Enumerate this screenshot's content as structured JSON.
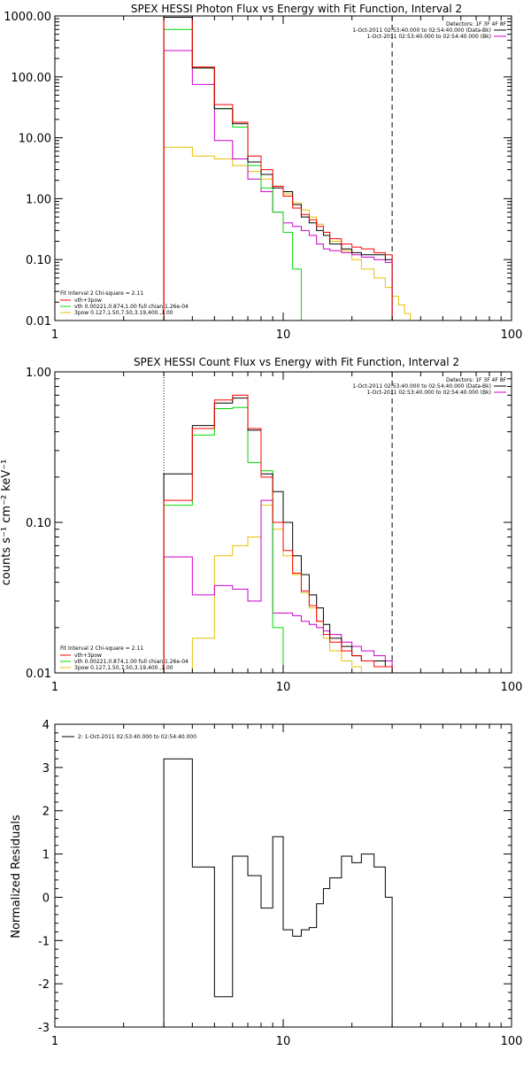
{
  "chart_data": [
    {
      "type": "step",
      "title": "SPEX HESSI Photon Flux vs Energy with Fit Function, Interval 2",
      "xlabel": "",
      "ylabel": "",
      "xscale": "log",
      "yscale": "log",
      "xlim": [
        1,
        100
      ],
      "ylim": [
        0.01,
        1000
      ],
      "x_ticks": [
        "1",
        "10",
        "100"
      ],
      "y_ticks": [
        "1000.00",
        "100.00",
        "10.00",
        "1.00",
        "0.10",
        "0.01"
      ],
      "vlines": [
        {
          "x": 3,
          "style": "dotted",
          "color": "#ff8c00"
        },
        {
          "x": 30,
          "style": "dashed",
          "color": "#000000"
        }
      ],
      "legend_top_right": {
        "header": "Detectors: 1F 3F 4F 8F",
        "entries": [
          {
            "label": "1-Oct-2011 02:53:40.000 to 02:54:40.000 (Data-Bk)",
            "color": "#000000"
          },
          {
            "label": "1-Oct-2011 02:53:40.000 to 02:54:40.000 (Bk)",
            "color": "#cc00cc"
          }
        ]
      },
      "legend_bottom_left": {
        "header": "Fit Interval 2   Chi-square = 2.11",
        "entries": [
          {
            "label": "vth+3pow",
            "color": "#ff0000"
          },
          {
            "label": "vth 0.00221,0.874,1.00   full chian 1.26e-04",
            "color": "#00dd00"
          },
          {
            "label": "3pow 0.127,1.50,7.50,3.19,400.,1.00",
            "color": "#e6c000"
          }
        ]
      },
      "bin_edges": [
        3,
        4,
        5,
        6,
        7,
        8,
        9,
        10,
        11,
        12,
        13,
        14,
        15,
        16,
        18,
        20,
        22,
        25,
        28,
        30,
        32,
        34,
        36,
        38,
        40
      ],
      "series": [
        {
          "name": "vth+3pow",
          "color": "#ff0000",
          "values": [
            1000,
            145,
            35,
            18,
            5,
            3,
            1.6,
            1.1,
            0.7,
            0.55,
            0.45,
            0.35,
            0.28,
            0.22,
            0.18,
            0.16,
            0.15,
            0.13,
            0.12,
            null,
            null,
            null,
            null,
            null
          ]
        },
        {
          "name": "Data-Bk",
          "color": "#000000",
          "values": [
            950,
            140,
            30,
            17,
            4,
            2.5,
            1.5,
            1.3,
            0.8,
            0.5,
            0.4,
            0.3,
            0.25,
            0.18,
            0.15,
            0.13,
            0.12,
            0.12,
            0.1,
            null,
            null,
            null,
            null,
            null
          ]
        },
        {
          "name": "vth",
          "color": "#00dd00",
          "values": [
            600,
            140,
            30,
            15,
            3.5,
            1.5,
            0.6,
            0.28,
            0.07,
            0.01,
            0.01,
            null,
            null,
            null,
            null,
            null,
            null,
            null,
            null,
            null,
            null,
            null,
            null,
            null
          ]
        },
        {
          "name": "Bk",
          "color": "#cc00cc",
          "values": [
            270,
            75,
            9,
            4.5,
            2.1,
            1.3,
            0.6,
            0.4,
            0.35,
            0.3,
            0.25,
            0.18,
            0.15,
            0.14,
            0.13,
            0.12,
            0.11,
            0.1,
            0.09,
            null,
            null,
            null,
            null,
            null
          ]
        },
        {
          "name": "3pow",
          "color": "#e6c000",
          "values": [
            7,
            5,
            4.5,
            3.5,
            2.8,
            2.1,
            1.6,
            1.2,
            0.85,
            0.65,
            0.5,
            0.38,
            0.28,
            0.2,
            0.14,
            0.1,
            0.07,
            0.05,
            0.035,
            0.025,
            0.018,
            0.013,
            0.01,
            0.01
          ]
        }
      ]
    },
    {
      "type": "step",
      "title": "SPEX HESSI Count Flux vs Energy with Fit Function, Interval 2",
      "xlabel": "",
      "ylabel": "counts s⁻¹ cm⁻² keV⁻¹",
      "xscale": "log",
      "yscale": "log",
      "xlim": [
        1,
        100
      ],
      "ylim": [
        0.01,
        1
      ],
      "x_ticks": [
        "1",
        "10",
        "100"
      ],
      "y_ticks": [
        "1.00",
        "0.10",
        "0.01"
      ],
      "vlines": [
        {
          "x": 3,
          "style": "dotted",
          "color": "#000000"
        },
        {
          "x": 30,
          "style": "dashed",
          "color": "#000000"
        }
      ],
      "legend_top_right": {
        "header": "Detectors: 1F 3F 4F 8F",
        "entries": [
          {
            "label": "1-Oct-2011 02:53:40.000 to 02:54:40.000 (Data-Bk)",
            "color": "#000000"
          },
          {
            "label": "1-Oct-2011 02:53:40.000 to 02:54:40.000 (Bk)",
            "color": "#cc00cc"
          }
        ]
      },
      "legend_bottom_left": {
        "header": "Fit Interval 2   Chi-square = 2.11",
        "entries": [
          {
            "label": "vth+3pow",
            "color": "#ff0000"
          },
          {
            "label": "vth 0.00221,0.874,1.00   full chian 1.26e-04",
            "color": "#00dd00"
          },
          {
            "label": "3pow 0.127,1.50,7.50,3.19,400.,1.00",
            "color": "#e6c000"
          }
        ]
      },
      "bin_edges": [
        3,
        4,
        5,
        6,
        7,
        8,
        9,
        10,
        11,
        12,
        13,
        14,
        15,
        16,
        18,
        20,
        22,
        25,
        28,
        30
      ],
      "series": [
        {
          "name": "vth+3pow",
          "color": "#ff0000",
          "values": [
            0.14,
            0.42,
            0.65,
            0.7,
            0.42,
            0.2,
            0.1,
            0.065,
            0.046,
            0.035,
            0.028,
            0.022,
            0.018,
            0.016,
            0.014,
            0.013,
            0.012,
            0.011,
            0.011
          ]
        },
        {
          "name": "Data-Bk",
          "color": "#000000",
          "values": [
            0.21,
            0.44,
            0.62,
            0.67,
            0.41,
            0.21,
            0.16,
            0.1,
            0.06,
            0.045,
            0.033,
            0.027,
            0.021,
            0.017,
            0.015,
            0.013,
            0.012,
            0.012,
            0.011
          ]
        },
        {
          "name": "vth",
          "color": "#00dd00",
          "values": [
            0.13,
            0.38,
            0.57,
            0.58,
            0.25,
            0.22,
            0.02,
            0.01,
            null,
            null,
            null,
            null,
            null,
            null,
            null,
            null,
            null,
            null,
            null
          ]
        },
        {
          "name": "Bk",
          "color": "#cc00cc",
          "values": [
            0.059,
            0.033,
            0.038,
            0.036,
            0.03,
            0.14,
            0.025,
            0.025,
            0.024,
            0.022,
            0.021,
            0.02,
            0.019,
            0.018,
            0.016,
            0.015,
            0.014,
            0.013,
            0.012
          ]
        },
        {
          "name": "3pow",
          "color": "#e6c000",
          "values": [
            0.01,
            0.017,
            0.06,
            0.07,
            0.08,
            0.13,
            0.09,
            0.06,
            0.045,
            0.034,
            0.027,
            0.022,
            0.017,
            0.014,
            0.012,
            0.011,
            0.01,
            0.01,
            null
          ]
        }
      ]
    },
    {
      "type": "step",
      "title": "",
      "xlabel": "",
      "ylabel": "Normalized Residuals",
      "xscale": "log",
      "yscale": "linear",
      "xlim": [
        1,
        100
      ],
      "ylim": [
        -3,
        4
      ],
      "x_ticks": [
        "1",
        "10",
        "100"
      ],
      "y_ticks": [
        "4",
        "3",
        "2",
        "1",
        "0",
        "-1",
        "-2",
        "-3"
      ],
      "legend_top_left": {
        "entries": [
          {
            "label": "2: 1-Oct-2011 02:53:40.000 to 02:54:40.000",
            "color": "#000000"
          }
        ]
      },
      "bin_edges": [
        3,
        4,
        5,
        6,
        7,
        8,
        9,
        10,
        11,
        12,
        13,
        14,
        15,
        16,
        18,
        20,
        22,
        25,
        28,
        30
      ],
      "series": [
        {
          "name": "2",
          "color": "#000000",
          "values": [
            3.2,
            0.7,
            -2.3,
            0.95,
            0.5,
            -0.25,
            1.4,
            -0.75,
            -0.9,
            -0.75,
            -0.7,
            -0.15,
            0.2,
            0.45,
            0.95,
            0.8,
            1.0,
            0.7,
            0.0
          ]
        }
      ]
    }
  ]
}
